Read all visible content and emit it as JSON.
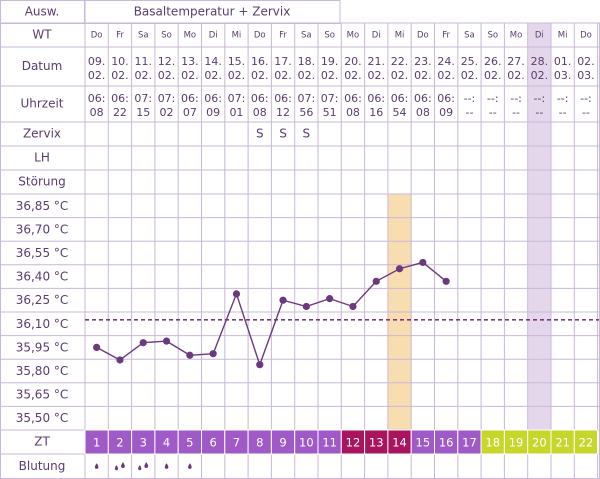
{
  "header": {
    "ausw_label": "Ausw.",
    "title": "Basaltemperatur + Zervix"
  },
  "row_labels": {
    "wt": "WT",
    "datum": "Datum",
    "uhrzeit": "Uhrzeit",
    "zervix": "Zervix",
    "lh": "LH",
    "stoerung": "Störung",
    "zt": "ZT",
    "blutung": "Blutung"
  },
  "weekdays": [
    "Do",
    "Fr",
    "Sa",
    "So",
    "Mo",
    "Di",
    "Mi",
    "Do",
    "Fr",
    "Sa",
    "So",
    "Mo",
    "Di",
    "Mi",
    "Do",
    "Fr",
    "Sa",
    "So",
    "Mo",
    "Di",
    "Mi",
    "Do"
  ],
  "dates": [
    [
      "09.",
      "02."
    ],
    [
      "10.",
      "02."
    ],
    [
      "11.",
      "02."
    ],
    [
      "12.",
      "02."
    ],
    [
      "13.",
      "02."
    ],
    [
      "14.",
      "02."
    ],
    [
      "15.",
      "02."
    ],
    [
      "16.",
      "02."
    ],
    [
      "17.",
      "02."
    ],
    [
      "18.",
      "02."
    ],
    [
      "19.",
      "02."
    ],
    [
      "20.",
      "02."
    ],
    [
      "21.",
      "02."
    ],
    [
      "22.",
      "02."
    ],
    [
      "23.",
      "02."
    ],
    [
      "24.",
      "02."
    ],
    [
      "25.",
      "02."
    ],
    [
      "26.",
      "02."
    ],
    [
      "27.",
      "02."
    ],
    [
      "28.",
      "02."
    ],
    [
      "01.",
      "03."
    ],
    [
      "02.",
      "03."
    ]
  ],
  "times": [
    [
      "06:",
      "08"
    ],
    [
      "06:",
      "22"
    ],
    [
      "07:",
      "15"
    ],
    [
      "07:",
      "02"
    ],
    [
      "06:",
      "07"
    ],
    [
      "06:",
      "09"
    ],
    [
      "07:",
      "01"
    ],
    [
      "06:",
      "08"
    ],
    [
      "06:",
      "12"
    ],
    [
      "07:",
      "56"
    ],
    [
      "07:",
      "51"
    ],
    [
      "06:",
      "08"
    ],
    [
      "06:",
      "16"
    ],
    [
      "06:",
      "54"
    ],
    [
      "06:",
      "08"
    ],
    [
      "06:",
      "09"
    ],
    [
      "--:",
      "--"
    ],
    [
      "--:",
      "--"
    ],
    [
      "--:",
      "--"
    ],
    [
      "--:",
      "--"
    ],
    [
      "--:",
      "--"
    ],
    [
      "--:",
      "--"
    ]
  ],
  "zervix": [
    "",
    "",
    "",
    "",
    "",
    "",
    "",
    "S",
    "S",
    "S",
    "",
    "",
    "",
    "",
    "",
    "",
    "",
    "",
    "",
    "",
    "",
    ""
  ],
  "temp_labels": [
    "36,85 °C",
    "36,70 °C",
    "36,55 °C",
    "36,40 °C",
    "36,25 °C",
    "36,10 °C",
    "35,95 °C",
    "35,80 °C",
    "35,65 °C",
    "35,50 °C"
  ],
  "zt_days": [
    "1",
    "2",
    "3",
    "4",
    "5",
    "6",
    "7",
    "8",
    "9",
    "10",
    "11",
    "12",
    "13",
    "14",
    "15",
    "16",
    "17",
    "18",
    "19",
    "20",
    "21",
    "22"
  ],
  "bleeding": [
    "drop",
    "drops",
    "drops",
    "drop",
    "drop",
    "",
    "",
    "",
    "",
    "",
    "",
    "",
    "",
    "",
    "",
    "",
    "",
    "",
    "",
    "",
    "",
    ""
  ],
  "colors": {
    "grid": "#c9b8d6",
    "text": "#5a3c6e",
    "line": "#6b3a7d",
    "purple": "#a05ac8",
    "magenta": "#a8155e",
    "lime": "#c7d62b",
    "ovulation": "#f7ddb0",
    "today": "#e4d7ec",
    "coverline": "#7a3a7a"
  },
  "chart_data": {
    "type": "line",
    "x": [
      "09.02.",
      "10.02.",
      "11.02.",
      "12.02.",
      "13.02.",
      "14.02.",
      "15.02.",
      "16.02.",
      "17.02.",
      "18.02.",
      "19.02.",
      "20.02.",
      "21.02.",
      "22.02.",
      "23.02.",
      "24.02."
    ],
    "series": [
      {
        "values": [
          35.95,
          35.87,
          35.98,
          35.99,
          35.9,
          35.91,
          36.29,
          35.84,
          36.25,
          36.21,
          36.26,
          36.21,
          36.37,
          36.45,
          36.49,
          36.37
        ]
      }
    ],
    "coverline": 36.1,
    "ylim": [
      35.5,
      36.85
    ],
    "yticks": [
      36.85,
      36.7,
      36.55,
      36.4,
      36.25,
      36.1,
      35.95,
      35.8,
      35.65,
      35.5
    ],
    "highlight_ovulation_day": "22.02.",
    "highlight_today": "28.02."
  }
}
